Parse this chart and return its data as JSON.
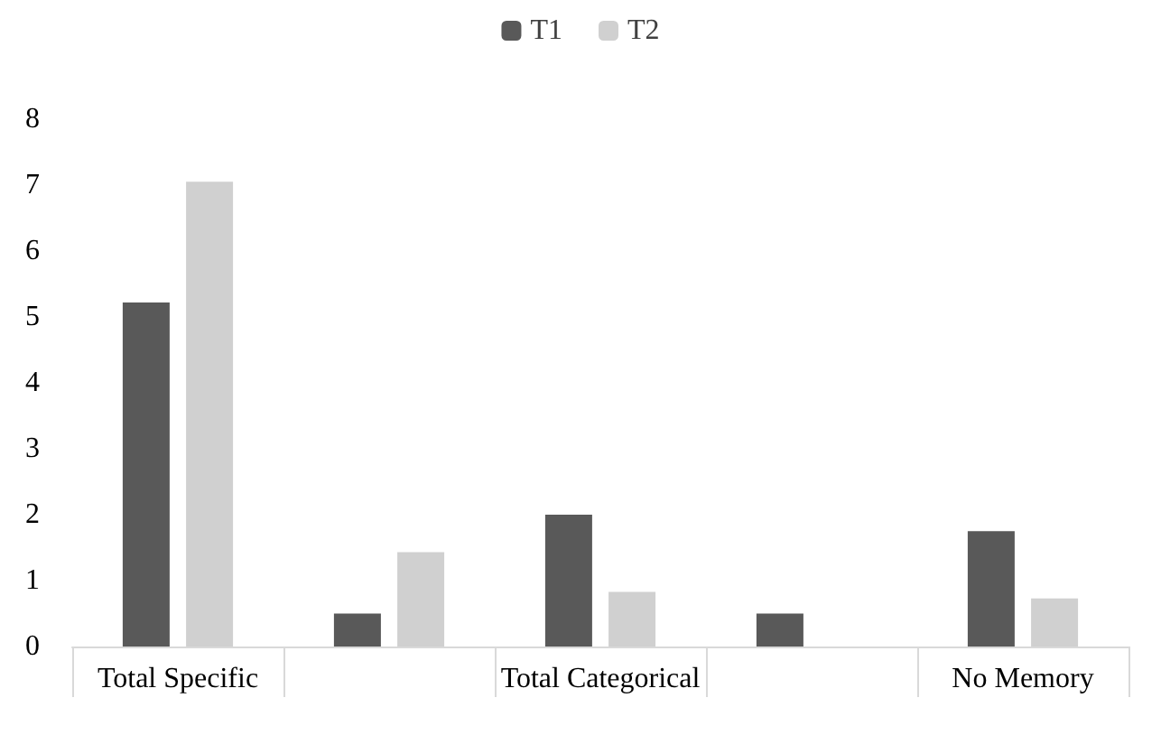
{
  "chart_data": {
    "type": "bar",
    "categories": [
      "Total Specific",
      null,
      "Total Categorical",
      null,
      "No Memory"
    ],
    "series": [
      {
        "name": "T1",
        "color": "#595959",
        "values": [
          5.22,
          0.5,
          2.0,
          0.5,
          1.75
        ]
      },
      {
        "name": "T2",
        "color": "#d0d0d0",
        "values": [
          7.05,
          1.43,
          0.83,
          null,
          0.73
        ]
      }
    ],
    "ylim": [
      0,
      8
    ],
    "yticks": [
      0,
      1,
      2,
      3,
      4,
      5,
      6,
      7,
      8
    ],
    "grid": false,
    "legend": "top"
  }
}
